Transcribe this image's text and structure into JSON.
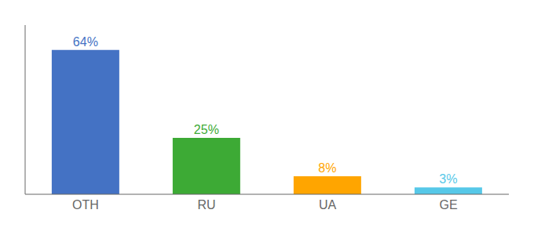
{
  "chart_data": {
    "type": "bar",
    "categories": [
      "OTH",
      "RU",
      "UA",
      "GE"
    ],
    "values": [
      64,
      25,
      8,
      3
    ],
    "value_labels": [
      "64%",
      "25%",
      "8%",
      "3%"
    ],
    "colors": [
      "#4472C4",
      "#3DAA35",
      "#FFA500",
      "#56C8E8"
    ],
    "ylim": [
      0,
      75
    ],
    "data_labels": true,
    "tick_labels": "x"
  }
}
